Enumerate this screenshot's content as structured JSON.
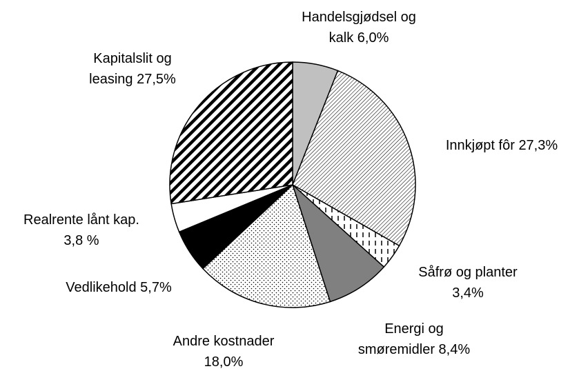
{
  "chart_data": {
    "type": "pie",
    "categories": [
      "Handelsgjødsel og kalk",
      "Innkjøpt fôr",
      "Såfrø og planter",
      "Energi og smøremidler",
      "Andre kostnader",
      "Vedlikehold",
      "Realrente lånt kap.",
      "Kapitalslit og leasing"
    ],
    "values": [
      6.0,
      27.3,
      3.4,
      8.4,
      18.0,
      5.7,
      3.8,
      27.5
    ],
    "value_labels": [
      "6,0%",
      "27,3%",
      "3,4%",
      "8,4%",
      "18,0%",
      "5,7%",
      "3,8 %",
      "27,5%"
    ],
    "colors": [
      "#c0c0c0",
      "#000000",
      "#000000",
      "#808080",
      "#000000",
      "#000000",
      "#ffffff",
      "#000000"
    ],
    "patterns": [
      "solid",
      "fine-hatch",
      "vertical-dashes",
      "solid",
      "dots",
      "solid",
      "solid",
      "bold-stripes"
    ]
  }
}
